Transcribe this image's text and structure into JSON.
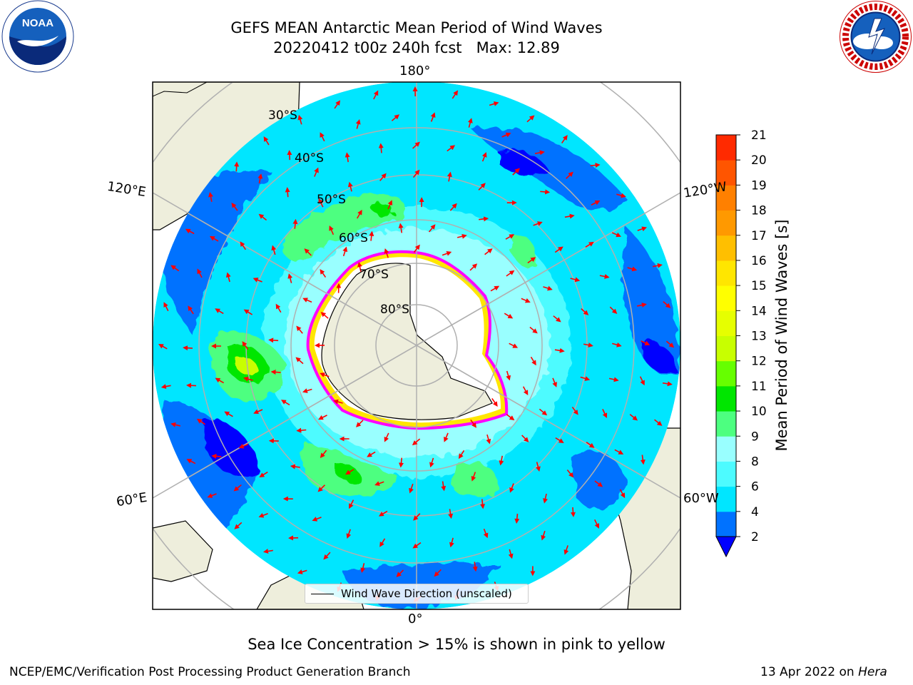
{
  "header": {
    "title_line1": "GEFS MEAN Antarctic Mean Period of Wind Waves",
    "title_line2": "20220412 t00z 240h fcst   Max: 12.89"
  },
  "logos": {
    "left": "NOAA",
    "right": "NATIONAL WEATHER SERVICE"
  },
  "map": {
    "projection": "south-polar-stereographic",
    "longitude_labels": {
      "top": "180°",
      "bottom": "0°",
      "upper_left": "120°E",
      "upper_right": "120°W",
      "lower_left": "60°E",
      "lower_right": "60°W"
    },
    "latitude_labels": [
      "30°S",
      "40°S",
      "50°S",
      "60°S",
      "70°S",
      "80°S"
    ],
    "legend_label": "Wind Wave Direction (unscaled)",
    "colors": {
      "land": "#eeeedc",
      "coast": "#000000",
      "grid": "#b0b0b0",
      "arrow": "#ff0000"
    }
  },
  "colorbar": {
    "label": "Mean Period of Wind Waves [s]",
    "ticks": [
      "2",
      "4",
      "6",
      "8",
      "9",
      "10",
      "11",
      "12",
      "13",
      "14",
      "15",
      "16",
      "17",
      "18",
      "19",
      "20",
      "21"
    ],
    "colors": [
      "#0072ff",
      "#00e6ff",
      "#4dfbff",
      "#99ffff",
      "#4dff80",
      "#00e600",
      "#66ff00",
      "#c8ff00",
      "#e6ff00",
      "#ffff00",
      "#ffe600",
      "#ffbf00",
      "#ff9900",
      "#ff8000",
      "#ff5500",
      "#ff2a00",
      "#ff0000"
    ],
    "extend_color": "#0000ff"
  },
  "annotations": {
    "sea_ice_note": "Sea Ice Concentration > 15% is shown in pink to yellow",
    "footer_left": "NCEP/EMC/Verification Post Processing Product Generation Branch",
    "footer_date": "13 Apr 2022 on ",
    "footer_machine": "Hera"
  }
}
